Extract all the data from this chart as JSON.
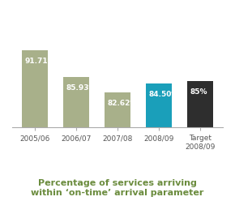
{
  "categories": [
    "2005/06",
    "2006/07",
    "2007/08",
    "2008/09",
    "Target\n2008/09"
  ],
  "values": [
    91.71,
    85.93,
    82.62,
    84.5,
    85.0
  ],
  "labels": [
    "91.71%",
    "85.93%",
    "82.62%",
    "84.50%",
    "85%"
  ],
  "bar_colors": [
    "#a8b08a",
    "#a8b08a",
    "#a8b08a",
    "#1a9fba",
    "#2e2e2e"
  ],
  "ylim": [
    75,
    100
  ],
  "background_color": "#ffffff",
  "title": "Percentage of services arriving\nwithin ‘on-time’ arrival parameter",
  "title_color": "#6b8c3e",
  "label_fontsize": 6.5,
  "label_color": "#ffffff",
  "title_fontsize": 8.0,
  "tick_fontsize": 6.5,
  "bar_width": 0.62
}
